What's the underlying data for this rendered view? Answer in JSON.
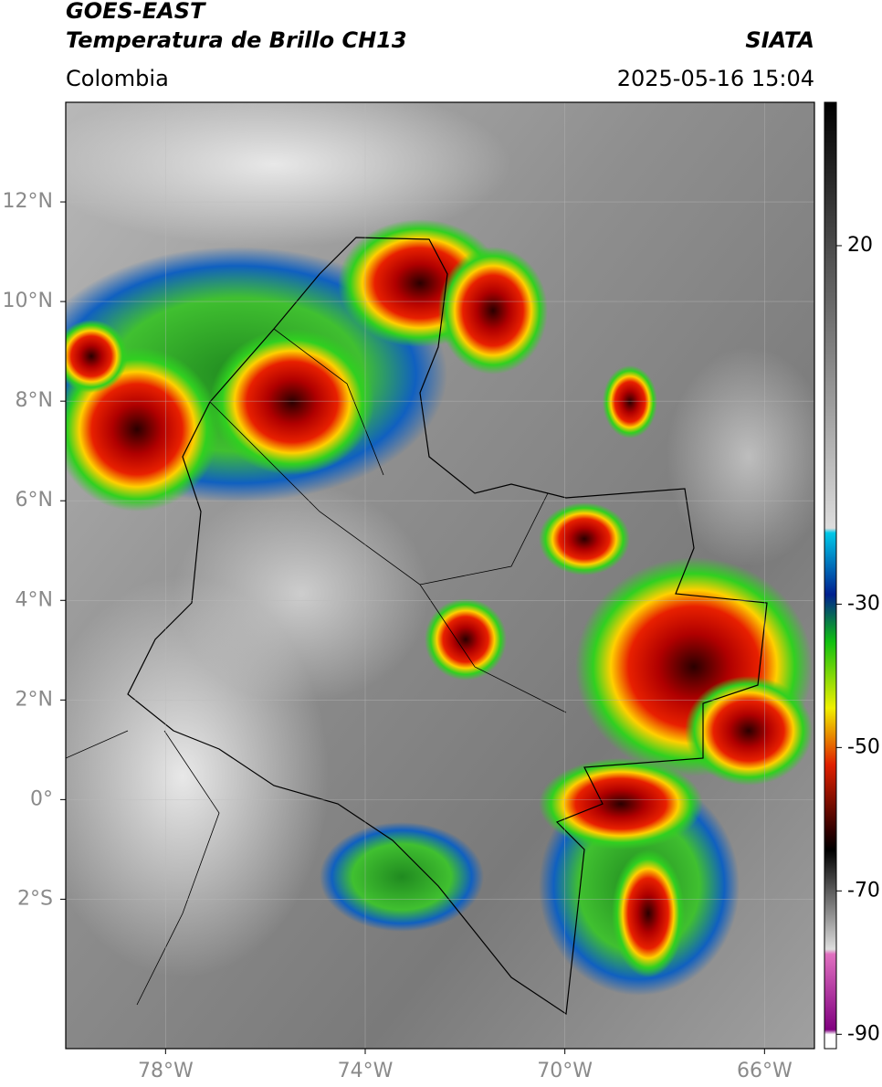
{
  "header": {
    "title": "GOES-EAST",
    "subtitle": "Temperatura de Brillo CH13",
    "region": "Colombia",
    "source": "SIATA",
    "datetime": "2025-05-16 15:04"
  },
  "map": {
    "xlim": [
      -80,
      -65
    ],
    "ylim": [
      -5,
      14
    ],
    "xticks": [
      {
        "value": -78,
        "label": "78°W"
      },
      {
        "value": -74,
        "label": "74°W"
      },
      {
        "value": -70,
        "label": "70°W"
      },
      {
        "value": -66,
        "label": "66°W"
      }
    ],
    "yticks": [
      {
        "value": 12,
        "label": "12°N"
      },
      {
        "value": 10,
        "label": "10°N"
      },
      {
        "value": 8,
        "label": "8°N"
      },
      {
        "value": 6,
        "label": "6°N"
      },
      {
        "value": 4,
        "label": "4°N"
      },
      {
        "value": 2,
        "label": "2°N"
      },
      {
        "value": 0,
        "label": "0°"
      },
      {
        "value": -2,
        "label": "2°S"
      }
    ]
  },
  "colorbar": {
    "lim": [
      -92,
      40
    ],
    "ticks": [
      20,
      -30,
      -50,
      -70,
      -90
    ]
  }
}
